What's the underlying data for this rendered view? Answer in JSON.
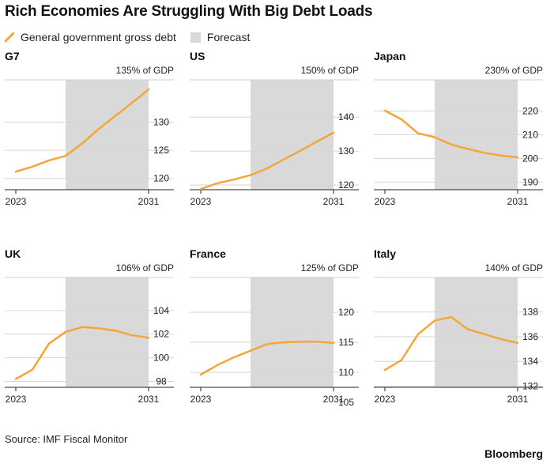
{
  "title": "Rich Economies Are Struggling With Big Debt Loads",
  "legend": {
    "series_label": "General government gross debt",
    "forecast_label": "Forecast"
  },
  "colors": {
    "line": "#f5a53a",
    "forecast": "#d9d9d9",
    "grid": "#d6d6d6",
    "axis": "#222222"
  },
  "source": "Source: IMF Fiscal Monitor",
  "brand": "Bloomberg",
  "chart_data": [
    {
      "type": "line",
      "title": "G7",
      "unit_label": "135% of GDP",
      "x": [
        2023,
        2024,
        2025,
        2026,
        2027,
        2028,
        2029,
        2030,
        2031
      ],
      "y": [
        121.2,
        122.1,
        123.2,
        124.0,
        126.2,
        128.8,
        131.1,
        133.4,
        135.8
      ],
      "ylim": [
        118.0,
        137.5
      ],
      "yticks": [
        120,
        125,
        130
      ],
      "forecast": [
        2026,
        2031
      ],
      "xticks": [
        2023,
        2031
      ]
    },
    {
      "type": "line",
      "title": "US",
      "unit_label": "150% of GDP",
      "x": [
        2023,
        2024,
        2025,
        2026,
        2027,
        2028,
        2029,
        2030,
        2031
      ],
      "y": [
        118.8,
        120.5,
        121.6,
        122.9,
        124.9,
        127.5,
        130.1,
        132.8,
        135.4
      ],
      "ylim": [
        118.6,
        151.0
      ],
      "yticks": [
        120,
        130,
        140
      ],
      "forecast": [
        2026,
        2031
      ],
      "xticks": [
        2023,
        2031
      ]
    },
    {
      "type": "line",
      "title": "Japan",
      "unit_label": "230% of GDP",
      "x": [
        2023,
        2024,
        2025,
        2026,
        2027,
        2028,
        2029,
        2030,
        2031
      ],
      "y": [
        220.2,
        216.5,
        210.6,
        209.0,
        205.9,
        204.0,
        202.4,
        201.2,
        200.5
      ],
      "ylim": [
        186.8,
        233.2
      ],
      "yticks": [
        190,
        200,
        210,
        220
      ],
      "forecast": [
        2026,
        2031
      ],
      "xticks": [
        2023,
        2031
      ]
    },
    {
      "type": "line",
      "title": "UK",
      "unit_label": "106% of GDP",
      "x": [
        2023,
        2024,
        2025,
        2026,
        2027,
        2028,
        2029,
        2030,
        2031
      ],
      "y": [
        98.2,
        99.0,
        101.2,
        102.2,
        102.6,
        102.5,
        102.3,
        101.9,
        101.7
      ],
      "ylim": [
        97.5,
        106.8
      ],
      "yticks": [
        98,
        100,
        102,
        104
      ],
      "forecast": [
        2026,
        2031
      ],
      "xticks": [
        2023,
        2031
      ]
    },
    {
      "type": "line",
      "title": "France",
      "unit_label": "125% of GDP",
      "x": [
        2023,
        2024,
        2025,
        2026,
        2027,
        2028,
        2029,
        2030,
        2031
      ],
      "y": [
        109.6,
        111.2,
        112.5,
        113.6,
        114.7,
        115.0,
        115.1,
        115.1,
        114.9
      ],
      "ylim": [
        107.5,
        125.8
      ],
      "yticks": [
        105,
        110,
        115,
        120
      ],
      "forecast": [
        2026,
        2031
      ],
      "xticks": [
        2023,
        2031
      ]
    },
    {
      "type": "line",
      "title": "Italy",
      "unit_label": "140% of GDP",
      "x": [
        2023,
        2024,
        2025,
        2026,
        2027,
        2028,
        2029,
        2030,
        2031
      ],
      "y": [
        133.3,
        134.1,
        136.2,
        137.3,
        137.6,
        136.6,
        136.2,
        135.8,
        135.5
      ],
      "ylim": [
        131.9,
        140.8
      ],
      "yticks": [
        132,
        134,
        136,
        138
      ],
      "forecast": [
        2026,
        2031
      ],
      "xticks": [
        2023,
        2031
      ]
    }
  ]
}
